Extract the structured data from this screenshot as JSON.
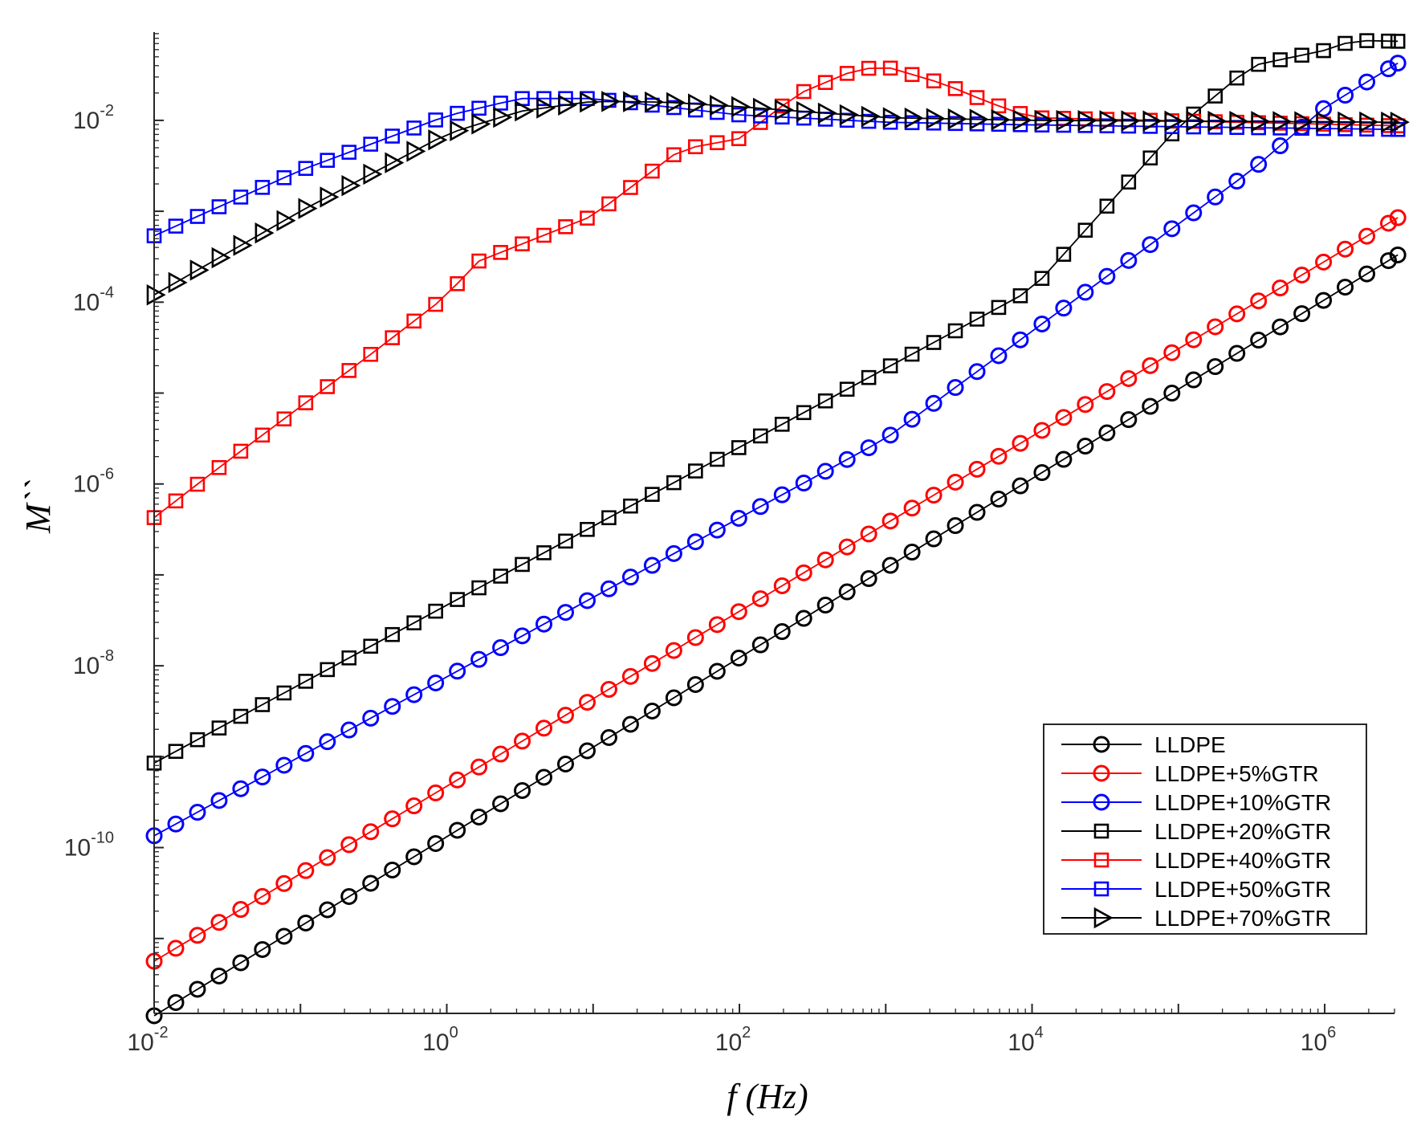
{
  "chart_data": {
    "type": "line",
    "title": "",
    "xlabel": "f (Hz)",
    "ylabel": "M``",
    "xscale": "log",
    "yscale": "log",
    "xlim": [
      0.01,
      3000000
    ],
    "ylim": [
      1.5e-12,
      0.0935
    ],
    "grid": false,
    "legend_position": "bottom-right",
    "x_ticks": [
      {
        "mantissa": "10",
        "exp": "-2"
      },
      {
        "mantissa": "10",
        "exp": "0"
      },
      {
        "mantissa": "10",
        "exp": "2"
      },
      {
        "mantissa": "10",
        "exp": "4"
      },
      {
        "mantissa": "10",
        "exp": "6"
      }
    ],
    "y_ticks": [
      {
        "mantissa": "10",
        "exp": "-10"
      },
      {
        "mantissa": "10",
        "exp": "-8"
      },
      {
        "mantissa": "10",
        "exp": "-6"
      },
      {
        "mantissa": "10",
        "exp": "-4"
      },
      {
        "mantissa": "10",
        "exp": "-2"
      }
    ],
    "series": [
      {
        "name": "LLDPE",
        "color": "#000000",
        "marker": "circle",
        "anchors_logf": [
          -2,
          6.5
        ],
        "anchors_logy": [
          -11.85,
          -3.48
        ]
      },
      {
        "name": "LLDPE+5%GTR",
        "color": "#ff0000",
        "marker": "circle",
        "anchors_logf": [
          -2,
          6.5
        ],
        "anchors_logy": [
          -11.25,
          -3.07
        ]
      },
      {
        "name": "LLDPE+10%GTR",
        "color": "#0000ff",
        "marker": "circle",
        "anchors_logf": [
          -2,
          3.0,
          5.5,
          6.0,
          6.5
        ],
        "anchors_logy": [
          -9.87,
          -5.5,
          -2.55,
          -1.86,
          -1.37
        ]
      },
      {
        "name": "LLDPE+20%GTR",
        "color": "#000000",
        "marker": "square",
        "anchors_logf": [
          -2,
          4.0,
          5.0,
          5.5,
          6.0,
          6.2,
          6.5
        ],
        "anchors_logy": [
          -9.07,
          -3.86,
          -2.07,
          -1.4,
          -1.23,
          -1.12,
          -1.13
        ]
      },
      {
        "name": "LLDPE+40%GTR",
        "color": "#ff0000",
        "marker": "square",
        "anchors_logf": [
          -2,
          -1.5,
          -1.0,
          -0.5,
          0,
          0.2,
          1.0,
          1.6,
          2.0,
          2.4,
          2.8,
          3.0,
          3.4,
          3.7,
          4.0,
          6.5
        ],
        "anchors_logy": [
          -6.37,
          -5.75,
          -5.15,
          -4.55,
          -3.93,
          -3.56,
          -3.05,
          -2.32,
          -2.2,
          -1.71,
          -1.44,
          -1.41,
          -1.6,
          -1.8,
          -1.97,
          -2.06
        ]
      },
      {
        "name": "LLDPE+50%GTR",
        "color": "#0000ff",
        "marker": "square",
        "anchors_logf": [
          -2,
          -1.0,
          0,
          0.5,
          1.0,
          2.0,
          3.0,
          4.0,
          6.5
        ],
        "anchors_logy": [
          -3.27,
          -2.55,
          -1.95,
          -1.76,
          -1.76,
          -1.94,
          -2.02,
          -2.05,
          -2.1
        ]
      },
      {
        "name": "LLDPE+70%GTR",
        "color": "#000000",
        "marker": "triangle-right",
        "anchors_logf": [
          -2,
          -1.0,
          0,
          0.5,
          1.0,
          1.5,
          2.0,
          3.0,
          4.0,
          6.5
        ],
        "anchors_logy": [
          -3.92,
          -3.0,
          -2.15,
          -1.9,
          -1.79,
          -1.8,
          -1.85,
          -1.97,
          -2.0,
          -2.02
        ]
      }
    ]
  }
}
